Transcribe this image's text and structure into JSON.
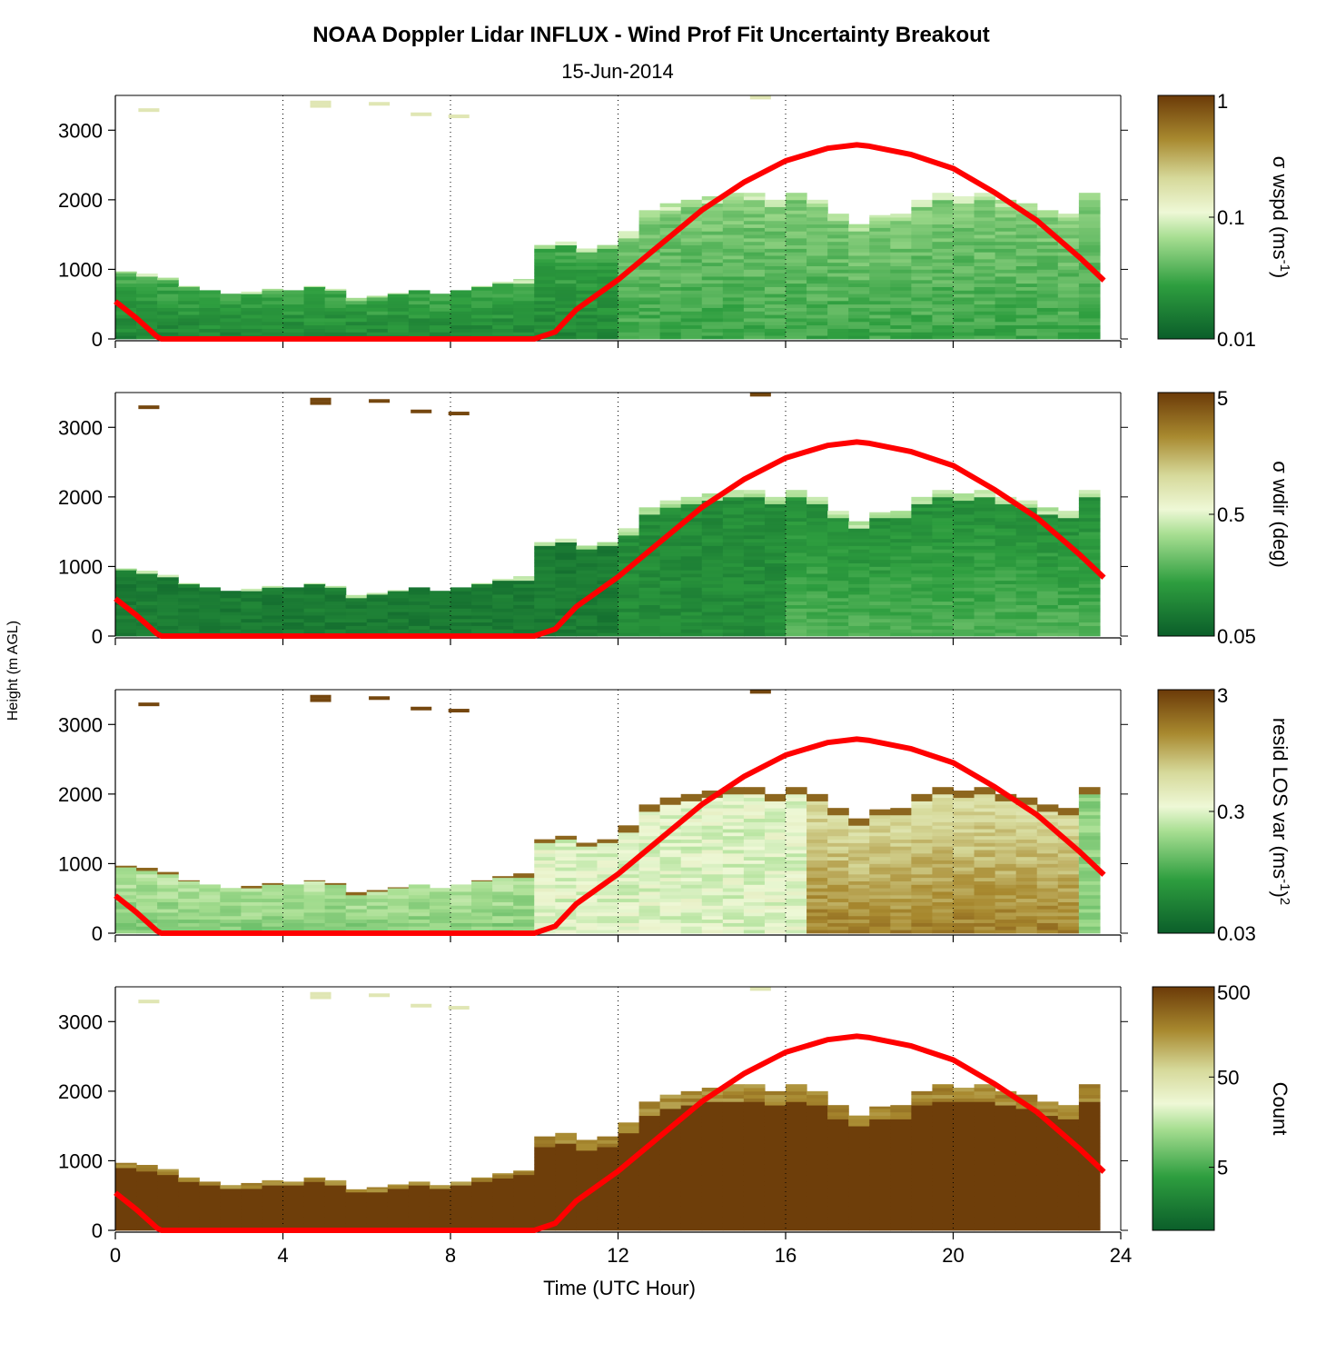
{
  "chart_data": {
    "type": "heatmap",
    "title": "NOAA Doppler Lidar INFLUX - Wind Prof Fit Uncertainty Breakout",
    "subtitle": "15-Jun-2014",
    "xlabel": "Time (UTC Hour)",
    "ylabel": "Height (m AGL)",
    "xlim": [
      0,
      24
    ],
    "ylim": [
      0,
      3500
    ],
    "x_ticks": [
      "0",
      "4",
      "8",
      "12",
      "16",
      "20",
      "24"
    ],
    "y_ticks": [
      "0",
      "1000",
      "2000",
      "3000"
    ],
    "grid": "vertical dotted",
    "time_hours": [
      0.1,
      0.6,
      1.1,
      1.6,
      2.1,
      2.6,
      3.1,
      3.6,
      4.1,
      4.6,
      5.1,
      5.6,
      6.1,
      6.6,
      7.1,
      7.6,
      8.1,
      8.6,
      9.1,
      9.6,
      10.1,
      10.6,
      11.1,
      11.6,
      12.1,
      12.6,
      13.1,
      13.6,
      14.1,
      14.6,
      15.1,
      15.6,
      16.1,
      16.6,
      17.1,
      17.6,
      18.1,
      18.6,
      19.1,
      19.6,
      20.1,
      20.6,
      21.1,
      21.6,
      22.1,
      22.6,
      23.1
    ],
    "profile_top_m": [
      970,
      940,
      880,
      760,
      700,
      650,
      680,
      720,
      700,
      760,
      720,
      590,
      620,
      660,
      700,
      650,
      700,
      760,
      820,
      860,
      1350,
      1400,
      1300,
      1350,
      1550,
      1850,
      1950,
      2000,
      2050,
      2100,
      2100,
      2000,
      2100,
      2000,
      1800,
      1650,
      1780,
      1800,
      2000,
      2100,
      2050,
      2100,
      2000,
      1950,
      1850,
      1800,
      2100
    ],
    "isolated_layers": [
      {
        "time_hour": 0.8,
        "height_m": 3290
      },
      {
        "time_hour": 4.9,
        "height_m": 3400
      },
      {
        "time_hour": 4.9,
        "height_m": 3350
      },
      {
        "time_hour": 6.3,
        "height_m": 3380
      },
      {
        "time_hour": 7.3,
        "height_m": 3230
      },
      {
        "time_hour": 8.2,
        "height_m": 3200
      },
      {
        "time_hour": 15.4,
        "height_m": 3470
      }
    ],
    "overlay_series": {
      "color": "#ff0000",
      "x": [
        0,
        0.5,
        1,
        1.1,
        10,
        10.5,
        11,
        12,
        13,
        14,
        15,
        16,
        17,
        17.7,
        18,
        19,
        20,
        21,
        22,
        23,
        23.6
      ],
      "y": [
        540,
        300,
        30,
        0,
        0,
        100,
        420,
        850,
        1350,
        1850,
        2250,
        2560,
        2740,
        2790,
        2770,
        2650,
        2450,
        2100,
        1700,
        1180,
        840
      ]
    },
    "panels": [
      {
        "colorbar_label": "σ wspd (ms",
        "colorbar_label_sup": "-1",
        "colorbar_label_end": ")",
        "colorbar_ticks": [
          "1",
          "0.1",
          "0.01"
        ],
        "scale": "log",
        "range": [
          0.01,
          1
        ]
      },
      {
        "colorbar_label": "σ wdir (deg)",
        "colorbar_ticks": [
          "5",
          "0.5",
          "0.05"
        ],
        "scale": "log",
        "range": [
          0.05,
          5
        ]
      },
      {
        "colorbar_label": "resid LOS var (ms",
        "colorbar_label_sup": "-1",
        "colorbar_label_end": ")",
        "colorbar_label_sup2": "2",
        "colorbar_ticks": [
          "3",
          "0.3",
          "0.03"
        ],
        "scale": "log",
        "range": [
          0.03,
          3
        ]
      },
      {
        "colorbar_label": "Count",
        "colorbar_ticks": [
          "500",
          "50",
          "5"
        ],
        "scale": "log",
        "range": [
          1,
          500
        ]
      }
    ]
  }
}
